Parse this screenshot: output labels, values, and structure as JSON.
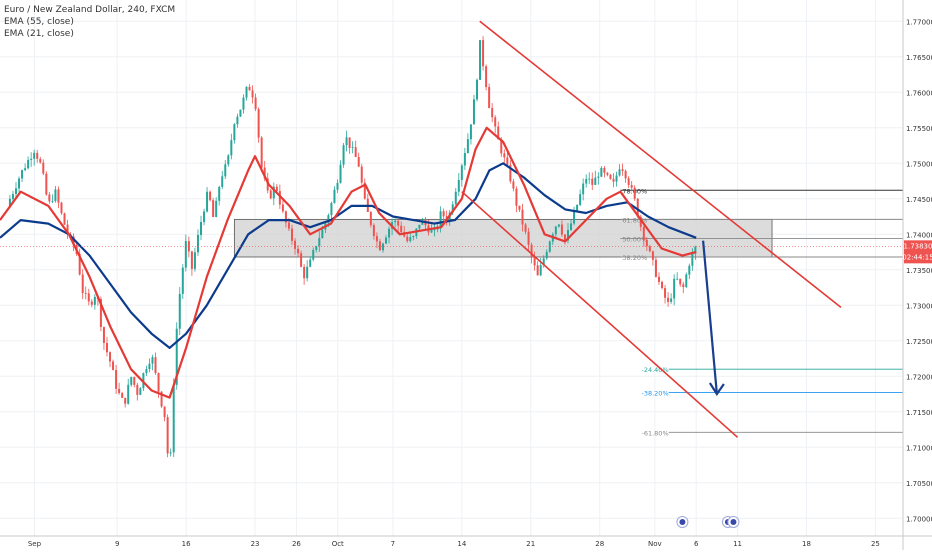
{
  "legend": {
    "line1": "Euro / New Zealand Dollar, 240, FXCM",
    "line2": "EMA (55, close)",
    "line3": "EMA (21, close)"
  },
  "chart_data": {
    "type": "candlestick",
    "symbol": "Euro / New Zealand Dollar",
    "interval": "240",
    "source": "FXCM",
    "ylim": [
      1.6975,
      1.773
    ],
    "y_ticks": [
      1.77,
      1.765,
      1.76,
      1.755,
      1.75,
      1.745,
      1.74,
      1.735,
      1.73,
      1.725,
      1.72,
      1.715,
      1.71,
      1.705,
      1.7
    ],
    "y_tick_labels": [
      "1.77000",
      "1.76500",
      "1.76000",
      "1.75500",
      "1.75000",
      "1.74500",
      "1.74000",
      "1.73500",
      "1.73000",
      "1.72500",
      "1.72000",
      "1.71500",
      "1.71000",
      "1.70500",
      "1.70000"
    ],
    "x_ticks": [
      {
        "label": "Sep",
        "x": 0
      },
      {
        "label": "9",
        "x": 6
      },
      {
        "label": "16",
        "x": 11
      },
      {
        "label": "23",
        "x": 16
      },
      {
        "label": "26",
        "x": 19
      },
      {
        "label": "Oct",
        "x": 22
      },
      {
        "label": "7",
        "x": 26
      },
      {
        "label": "14",
        "x": 31
      },
      {
        "label": "21",
        "x": 36
      },
      {
        "label": "28",
        "x": 41
      },
      {
        "label": "Nov",
        "x": 45
      },
      {
        "label": "6",
        "x": 48
      },
      {
        "label": "11",
        "x": 51
      },
      {
        "label": "18",
        "x": 56
      },
      {
        "label": "25",
        "x": 61
      }
    ],
    "x_range": [
      -2.5,
      63
    ],
    "price_close": [
      1.7383
    ],
    "price_label": "1.73830",
    "countdown_label": "02:44:15",
    "price_color": "#ef5350",
    "ohlc_path": [
      [
        -2,
        1.744
      ],
      [
        -1,
        1.7485
      ],
      [
        0,
        1.752
      ],
      [
        0.5,
        1.7495
      ],
      [
        1,
        1.744
      ],
      [
        1.5,
        1.746
      ],
      [
        2,
        1.7425
      ],
      [
        2.5,
        1.7395
      ],
      [
        3,
        1.738
      ],
      [
        3.5,
        1.732
      ],
      [
        4,
        1.73
      ],
      [
        4.5,
        1.732
      ],
      [
        5,
        1.725
      ],
      [
        5.5,
        1.722
      ],
      [
        6,
        1.718
      ],
      [
        6.5,
        1.716
      ],
      [
        7,
        1.72
      ],
      [
        7.5,
        1.7175
      ],
      [
        8,
        1.721
      ],
      [
        8.5,
        1.723
      ],
      [
        9,
        1.718
      ],
      [
        9.5,
        1.714
      ],
      [
        9.8,
        1.705
      ],
      [
        10.2,
        1.724
      ],
      [
        10.6,
        1.733
      ],
      [
        11,
        1.739
      ],
      [
        11.4,
        1.735
      ],
      [
        11.8,
        1.739
      ],
      [
        12.2,
        1.743
      ],
      [
        12.6,
        1.746
      ],
      [
        13,
        1.742
      ],
      [
        13.5,
        1.748
      ],
      [
        14,
        1.75
      ],
      [
        14.5,
        1.756
      ],
      [
        15,
        1.758
      ],
      [
        15.5,
        1.761
      ],
      [
        16,
        1.759
      ],
      [
        16.5,
        1.749
      ],
      [
        17,
        1.745
      ],
      [
        17.5,
        1.747
      ],
      [
        18,
        1.743
      ],
      [
        18.5,
        1.74
      ],
      [
        19,
        1.738
      ],
      [
        19.5,
        1.734
      ],
      [
        20,
        1.736
      ],
      [
        20.5,
        1.739
      ],
      [
        21,
        1.741
      ],
      [
        21.5,
        1.744
      ],
      [
        22,
        1.748
      ],
      [
        22.5,
        1.754
      ],
      [
        23,
        1.752
      ],
      [
        23.5,
        1.75
      ],
      [
        24,
        1.744
      ],
      [
        24.5,
        1.741
      ],
      [
        25,
        1.738
      ],
      [
        25.5,
        1.74
      ],
      [
        26,
        1.742
      ],
      [
        26.5,
        1.741
      ],
      [
        27,
        1.739
      ],
      [
        27.5,
        1.7395
      ],
      [
        28,
        1.742
      ],
      [
        28.5,
        1.741
      ],
      [
        29,
        1.74
      ],
      [
        29.5,
        1.743
      ],
      [
        30,
        1.742
      ],
      [
        30.5,
        1.746
      ],
      [
        31,
        1.75
      ],
      [
        31.5,
        1.754
      ],
      [
        32,
        1.76
      ],
      [
        32.3,
        1.767
      ],
      [
        32.7,
        1.762
      ],
      [
        33,
        1.758
      ],
      [
        33.5,
        1.754
      ],
      [
        34,
        1.751
      ],
      [
        34.5,
        1.748
      ],
      [
        35,
        1.744
      ],
      [
        35.5,
        1.741
      ],
      [
        36,
        1.737
      ],
      [
        36.5,
        1.734
      ],
      [
        37,
        1.737
      ],
      [
        37.5,
        1.74
      ],
      [
        38,
        1.742
      ],
      [
        38.5,
        1.739
      ],
      [
        39,
        1.742
      ],
      [
        39.5,
        1.745
      ],
      [
        40,
        1.748
      ],
      [
        40.5,
        1.747
      ],
      [
        41,
        1.749
      ],
      [
        41.5,
        1.748
      ],
      [
        42,
        1.747
      ],
      [
        42.5,
        1.75
      ],
      [
        43,
        1.748
      ],
      [
        43.5,
        1.745
      ],
      [
        44,
        1.741
      ],
      [
        44.5,
        1.738
      ],
      [
        45,
        1.735
      ],
      [
        45.5,
        1.732
      ],
      [
        46,
        1.73
      ],
      [
        46.5,
        1.734
      ],
      [
        47,
        1.732
      ],
      [
        47.5,
        1.736
      ],
      [
        48,
        1.7383
      ]
    ],
    "series": [
      {
        "name": "EMA (55, close)",
        "color": "#0d3b8c",
        "values": [
          [
            -2.5,
            1.7395
          ],
          [
            -1,
            1.742
          ],
          [
            1,
            1.7415
          ],
          [
            2.5,
            1.74
          ],
          [
            4,
            1.737
          ],
          [
            5.5,
            1.733
          ],
          [
            7,
            1.729
          ],
          [
            8.5,
            1.726
          ],
          [
            9.8,
            1.724
          ],
          [
            11,
            1.726
          ],
          [
            12.5,
            1.73
          ],
          [
            14,
            1.735
          ],
          [
            15.5,
            1.74
          ],
          [
            17,
            1.742
          ],
          [
            18.5,
            1.742
          ],
          [
            20,
            1.741
          ],
          [
            21.5,
            1.742
          ],
          [
            23,
            1.744
          ],
          [
            24.5,
            1.744
          ],
          [
            26,
            1.7425
          ],
          [
            27.5,
            1.742
          ],
          [
            29,
            1.7415
          ],
          [
            30.5,
            1.742
          ],
          [
            32,
            1.745
          ],
          [
            33,
            1.749
          ],
          [
            34,
            1.75
          ],
          [
            35.5,
            1.748
          ],
          [
            37,
            1.7455
          ],
          [
            38.5,
            1.7435
          ],
          [
            40,
            1.743
          ],
          [
            41.5,
            1.744
          ],
          [
            43,
            1.7445
          ],
          [
            44.5,
            1.7425
          ],
          [
            46,
            1.741
          ],
          [
            48,
            1.7395
          ]
        ]
      },
      {
        "name": "EMA (21, close)",
        "color": "#e53935",
        "values": [
          [
            -2.5,
            1.742
          ],
          [
            -1,
            1.746
          ],
          [
            1,
            1.744
          ],
          [
            2.5,
            1.74
          ],
          [
            4,
            1.734
          ],
          [
            5.5,
            1.727
          ],
          [
            7,
            1.721
          ],
          [
            8.5,
            1.718
          ],
          [
            9.8,
            1.717
          ],
          [
            11,
            1.724
          ],
          [
            12.5,
            1.734
          ],
          [
            14,
            1.742
          ],
          [
            15.5,
            1.749
          ],
          [
            16,
            1.751
          ],
          [
            17,
            1.747
          ],
          [
            18.5,
            1.744
          ],
          [
            20,
            1.74
          ],
          [
            21.5,
            1.7415
          ],
          [
            23,
            1.746
          ],
          [
            24,
            1.747
          ],
          [
            25,
            1.743
          ],
          [
            26.5,
            1.74
          ],
          [
            28,
            1.7405
          ],
          [
            29.5,
            1.741
          ],
          [
            31,
            1.745
          ],
          [
            32,
            1.752
          ],
          [
            32.8,
            1.755
          ],
          [
            34,
            1.753
          ],
          [
            35.5,
            1.747
          ],
          [
            37,
            1.74
          ],
          [
            38.5,
            1.739
          ],
          [
            40,
            1.742
          ],
          [
            41.5,
            1.745
          ],
          [
            42.5,
            1.746
          ],
          [
            44,
            1.742
          ],
          [
            45.5,
            1.738
          ],
          [
            47,
            1.737
          ],
          [
            48,
            1.7375
          ]
        ]
      }
    ],
    "annotations": {
      "fib_box": {
        "x0": 14.5,
        "x1": 53.5,
        "y_top": 1.7421,
        "y_bot": 1.7368,
        "fill": "#d0d0d0"
      },
      "fib_levels": [
        {
          "label": "78.60%",
          "value": 1.7462,
          "color": "#333333"
        },
        {
          "label": "61.80%",
          "value": 1.7421,
          "color": "#888888"
        },
        {
          "label": "50.00%",
          "value": 1.7394,
          "color": "#888888"
        },
        {
          "label": "38.20%",
          "value": 1.7368,
          "color": "#888888"
        },
        {
          "label": "-24.40%",
          "value": 1.721,
          "color": "#26a69a"
        },
        {
          "label": "-38.20%",
          "value": 1.7177,
          "color": "#2196f3"
        },
        {
          "label": "-61.80%",
          "value": 1.7121,
          "color": "#888888"
        }
      ],
      "channel_upper": {
        "from": [
          32.3,
          1.77
        ],
        "to": [
          58.5,
          1.7297
        ],
        "color": "#e53935"
      },
      "channel_lower": {
        "from": [
          31,
          1.746
        ],
        "to": [
          51,
          1.7114
        ],
        "color": "#e53935"
      },
      "arrow": {
        "from": [
          48.5,
          1.7391
        ],
        "to": [
          49.5,
          1.7175
        ],
        "color": "#1a3f8f"
      }
    }
  }
}
